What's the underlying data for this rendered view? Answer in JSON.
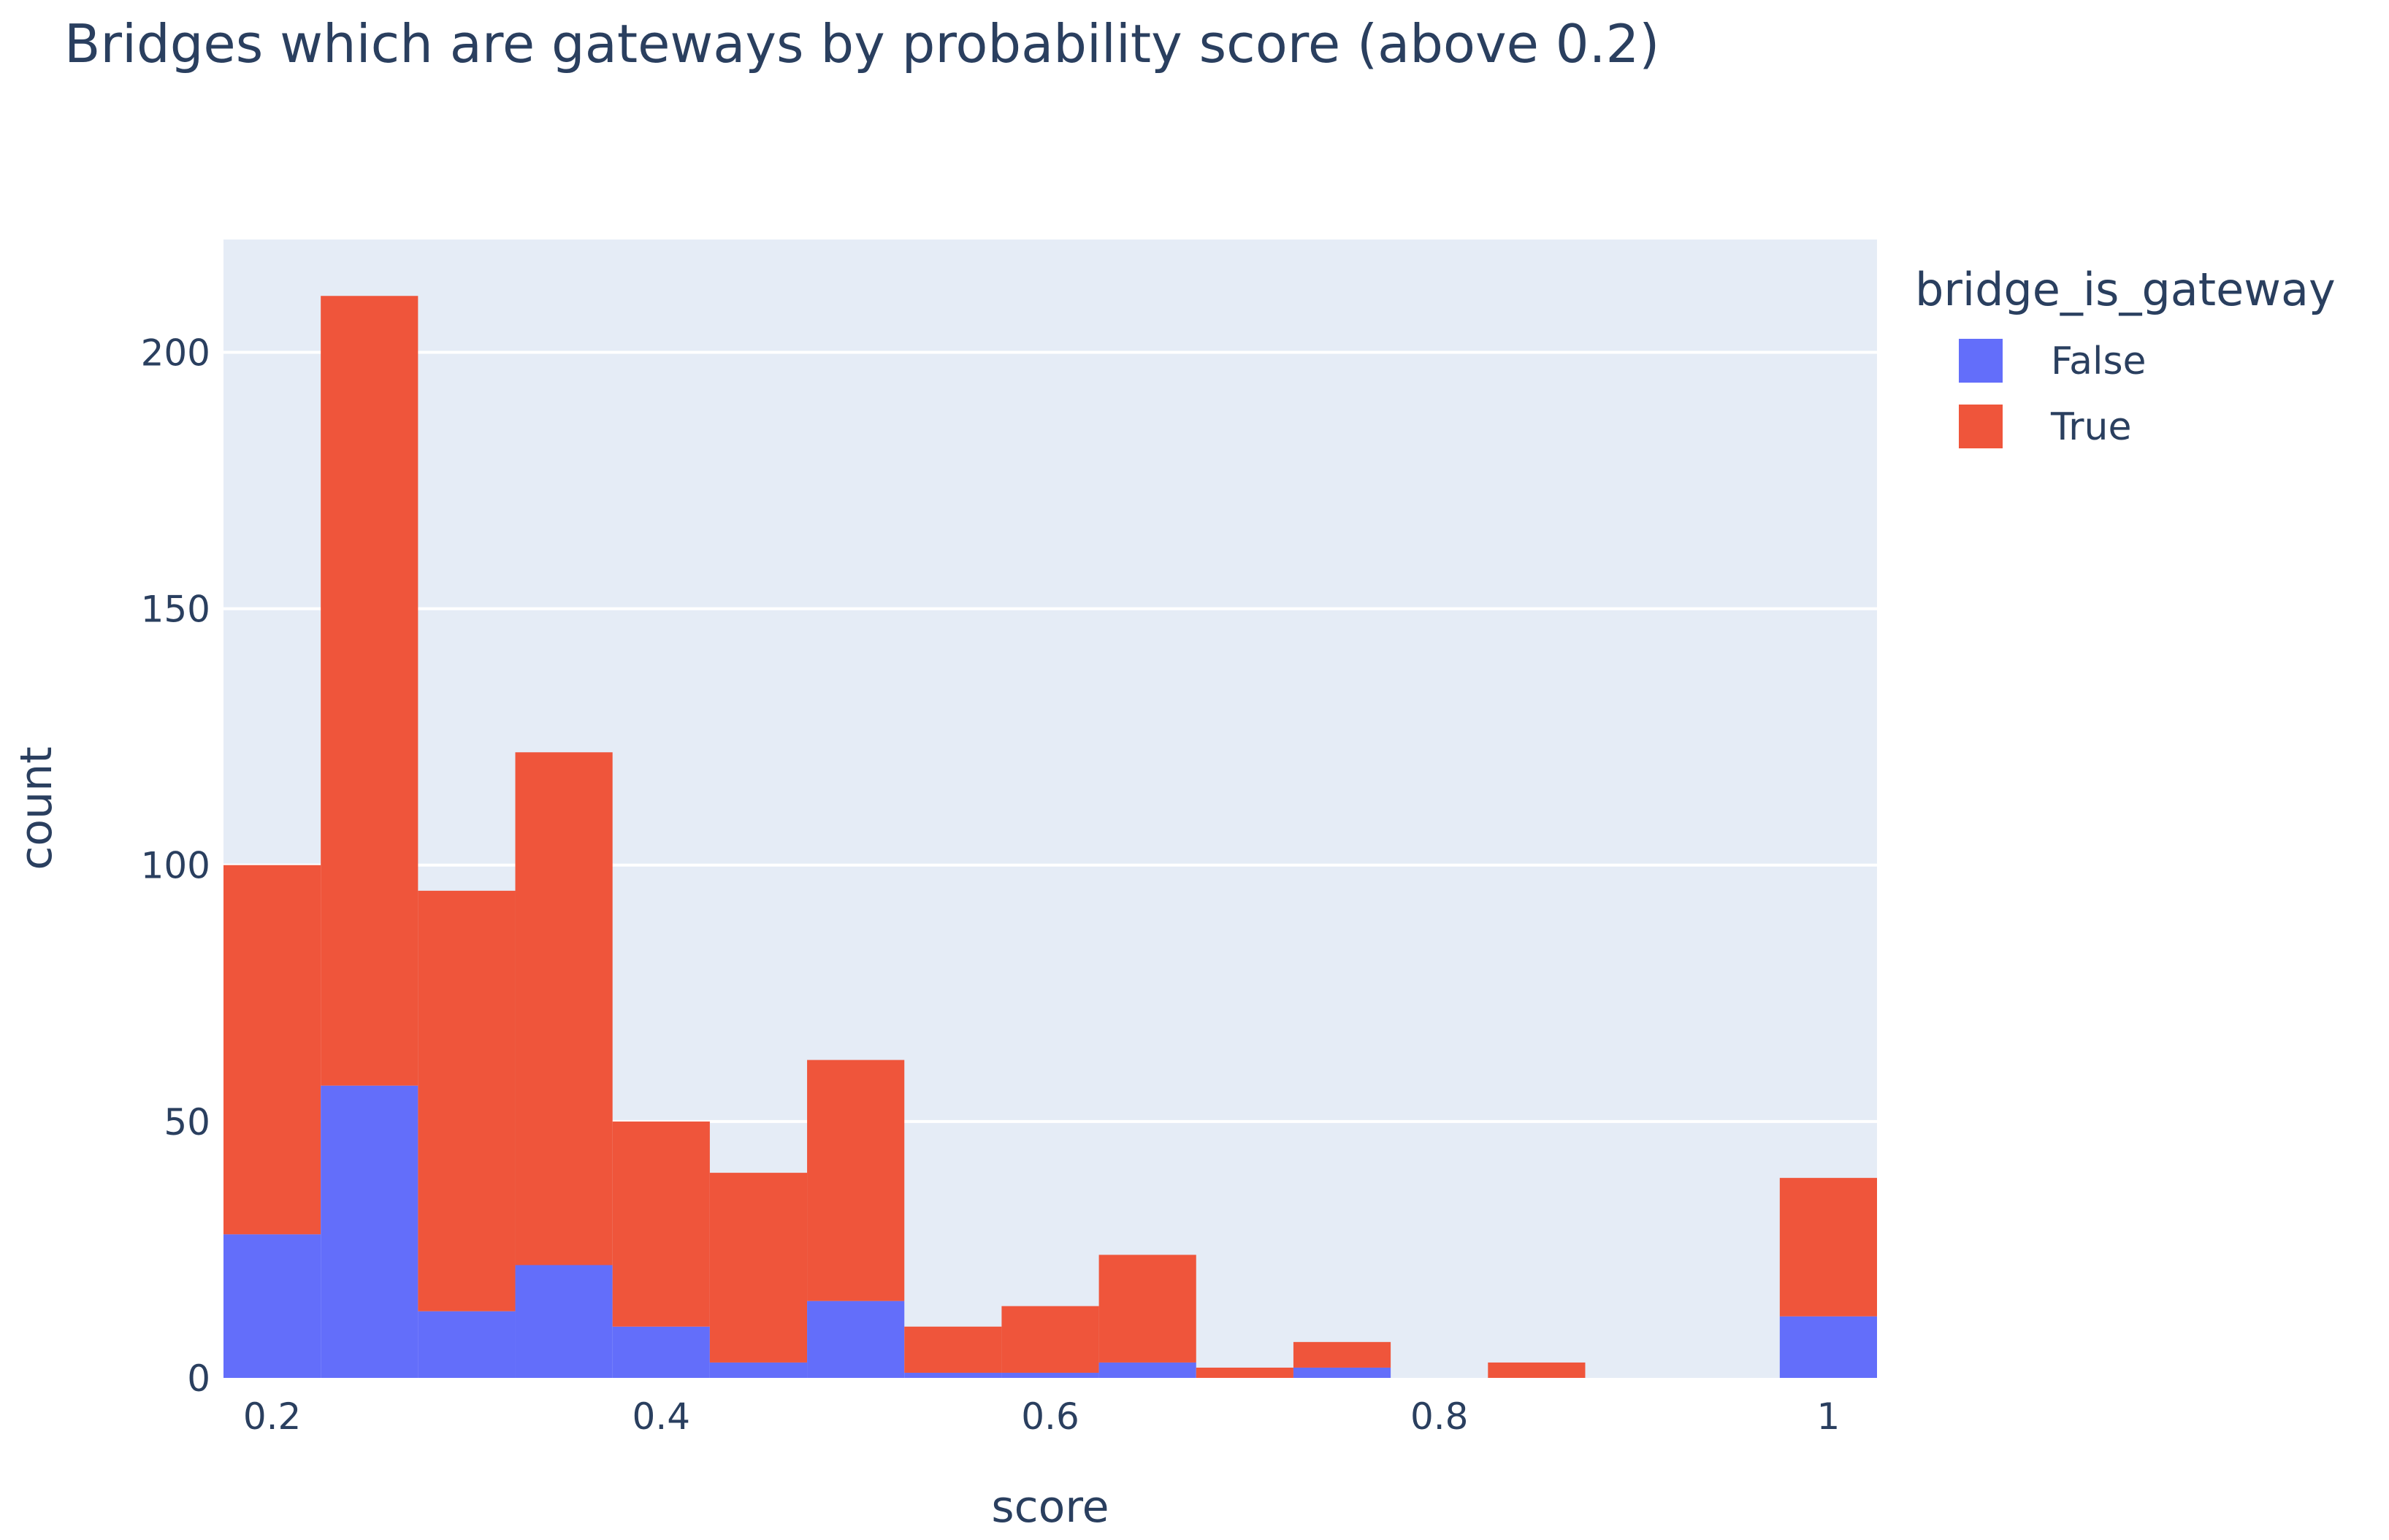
{
  "chart_data": {
    "type": "bar",
    "mode": "stacked-histogram",
    "title": "Bridges which are gateways by probability score (above 0.2)",
    "xlabel": "score",
    "ylabel": "count",
    "xlim": [
      0.175,
      1.025
    ],
    "ylim": [
      0,
      222
    ],
    "x_ticks": [
      0.2,
      0.4,
      0.6,
      0.8,
      1
    ],
    "x_tick_labels": [
      "0.2",
      "0.4",
      "0.6",
      "0.8",
      "1"
    ],
    "y_ticks": [
      0,
      50,
      100,
      150,
      200
    ],
    "y_tick_labels": [
      "0",
      "50",
      "100",
      "150",
      "200"
    ],
    "bin_edges": [
      0.175,
      0.225,
      0.275,
      0.325,
      0.375,
      0.425,
      0.475,
      0.525,
      0.575,
      0.625,
      0.675,
      0.725,
      0.775,
      0.825,
      0.875,
      0.925,
      0.975,
      1.025
    ],
    "series": [
      {
        "name": "False",
        "color": "#636efa",
        "values": [
          28,
          57,
          13,
          22,
          10,
          3,
          15,
          1,
          1,
          3,
          0,
          2,
          0,
          0,
          0,
          0,
          12
        ]
      },
      {
        "name": "True",
        "color": "#ef553b",
        "values": [
          72,
          154,
          82,
          100,
          40,
          37,
          47,
          9,
          13,
          21,
          2,
          5,
          0,
          3,
          0,
          0,
          27
        ]
      }
    ],
    "grid": true,
    "legend": {
      "title": "bridge_is_gateway",
      "placement": "top-right"
    },
    "plot_bgcolor": "#e5ecf6",
    "grid_color": "#ffffff"
  }
}
